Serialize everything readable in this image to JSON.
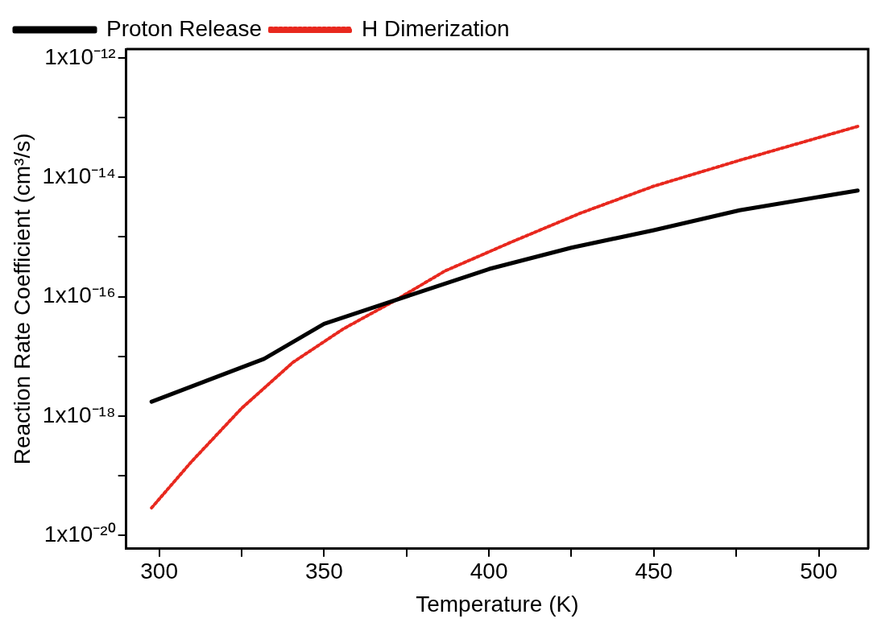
{
  "chart_data": {
    "type": "line",
    "xlabel": "Temperature (K)",
    "ylabel": "Reaction Rate Coefficient (cm³/s)",
    "log": "y",
    "grid": false,
    "legend": "top left",
    "marker": "none",
    "xlim": [
      290,
      515
    ],
    "xticks": [
      300,
      {
        "value": 325,
        "label": null
      },
      350,
      {
        "value": 375,
        "label": null
      },
      400,
      {
        "value": 425,
        "label": null
      },
      450,
      {
        "value": 475,
        "label": null
      },
      500
    ],
    "ylim": [
      6e-21,
      1.4e-12
    ],
    "yticks": [
      {
        "value": 1e-20,
        "label": "1x10⁻²⁰"
      },
      {
        "value": 1e-19,
        "label": null
      },
      {
        "value": 1e-18,
        "label": "1x10⁻¹⁸"
      },
      {
        "value": 1e-17,
        "label": null
      },
      {
        "value": 1e-16,
        "label": "1x10⁻¹⁶"
      },
      {
        "value": 1e-15,
        "label": null
      },
      {
        "value": 1e-14,
        "label": "1x10⁻¹⁴"
      },
      {
        "value": 1e-13,
        "label": null
      },
      {
        "value": 1e-12,
        "label": "1x10⁻¹²"
      }
    ],
    "series": [
      {
        "name": "Proton Release",
        "color": "#000000",
        "line_style": "solid",
        "x": [
          297.7,
          331.8,
          350,
          376.4,
          400,
          425,
          450,
          476,
          511.8
        ],
        "values": [
          1.74e-18,
          9.1e-18,
          3.5e-17,
          1.07e-16,
          2.9e-16,
          6.6e-16,
          1.3e-15,
          2.8e-15,
          6e-15
        ]
      },
      {
        "name": "H Dimerization",
        "color": "#e8281e",
        "line_style": "dotted",
        "x": [
          297.7,
          309.7,
          325,
          340.5,
          355.9,
          371,
          386.7,
          407,
          427.7,
          450,
          476.4,
          511.8
        ],
        "values": [
          2.9e-20,
          1.7e-19,
          1.35e-18,
          7.9e-18,
          2.9e-17,
          8.3e-17,
          2.7e-16,
          8.3e-16,
          2.5e-15,
          7.1e-15,
          1.95e-14,
          7.1e-14
        ]
      }
    ]
  }
}
